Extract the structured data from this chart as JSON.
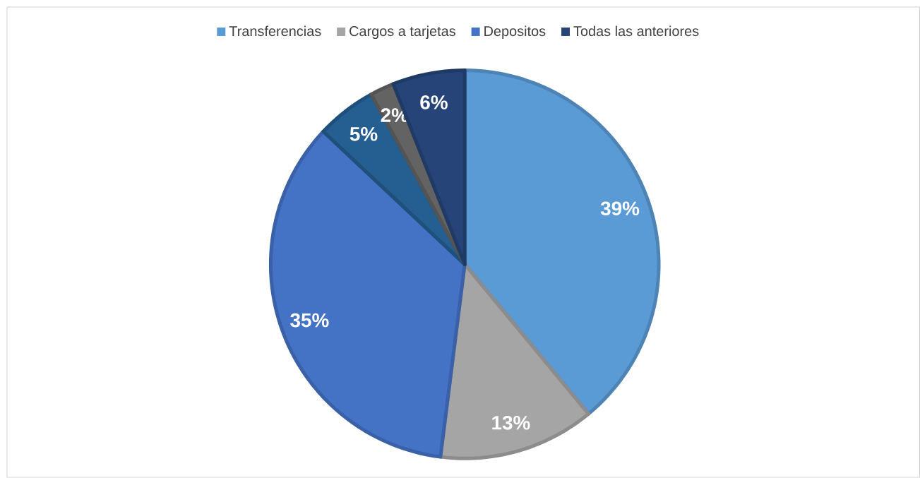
{
  "chart_data": {
    "type": "pie",
    "categories": [
      "Transferencias",
      "Cargos a tarjetas",
      "Depositos",
      null,
      null,
      "Todas las anteriores"
    ],
    "values": [
      39,
      13,
      35,
      5,
      2,
      6
    ],
    "value_labels": [
      "39%",
      "13%",
      "35%",
      "5%",
      "2%",
      "6%"
    ],
    "colors": [
      "#5b9bd5",
      "#a5a5a5",
      "#4472c4",
      "#255e91",
      "#636363",
      "#264478"
    ],
    "legend": "top"
  }
}
